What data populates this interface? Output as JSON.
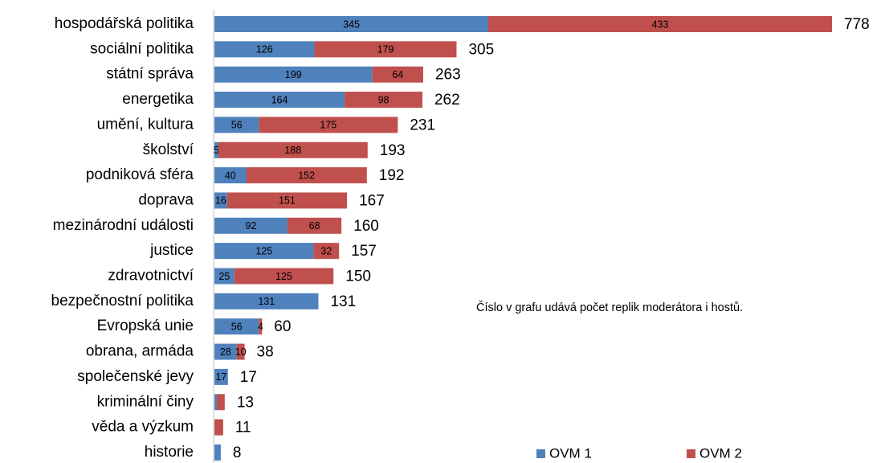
{
  "chart_data": {
    "type": "bar",
    "orientation": "horizontal",
    "stacked": true,
    "note": "Číslo v grafu udává počet replik moderátora i hostů.",
    "legend": "bottom",
    "categories": [
      "hospodářská politika",
      "sociální politika",
      "státní správa",
      "energetika",
      "umění, kultura",
      "školství",
      "podniková sféra",
      "doprava",
      "mezinárodní události",
      "justice",
      "zdravotnictví",
      "bezpečnostní politika",
      "Evropská unie",
      "obrana, armáda",
      "společenské jevy",
      "kriminální činy",
      "věda a výzkum",
      "historie"
    ],
    "series": [
      {
        "name": "OVM 1",
        "color": "#4f81bd",
        "values": [
          345,
          126,
          199,
          164,
          56,
          5,
          40,
          16,
          92,
          125,
          25,
          131,
          56,
          28,
          17,
          3,
          0,
          8
        ],
        "value_labels": [
          "345",
          "126",
          "199",
          "164",
          "56",
          "5",
          "40",
          "16",
          "92",
          "125",
          "25",
          "131",
          "56",
          "28",
          "17",
          null,
          null,
          null
        ]
      },
      {
        "name": "OVM 2",
        "color": "#c0504d",
        "values": [
          433,
          179,
          64,
          98,
          175,
          188,
          152,
          151,
          68,
          32,
          125,
          0,
          4,
          10,
          0,
          10,
          11,
          0
        ],
        "value_labels": [
          "433",
          "179",
          "64",
          "98",
          "175",
          "188",
          "152",
          "151",
          "68",
          "32",
          "125",
          null,
          "4",
          "10",
          null,
          null,
          null,
          null
        ]
      }
    ],
    "totals": [
      778,
      305,
      263,
      262,
      231,
      193,
      192,
      167,
      160,
      157,
      150,
      131,
      60,
      38,
      17,
      13,
      11,
      8
    ]
  }
}
